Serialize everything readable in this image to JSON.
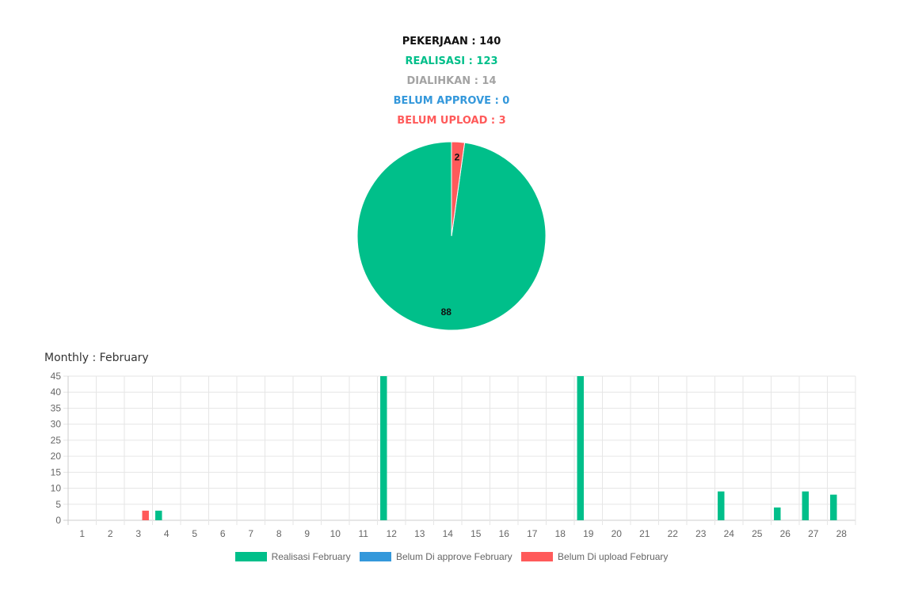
{
  "stats": {
    "pekerjaan": "PEKERJAAN : 140",
    "realisasi": "REALISASI : 123",
    "dialihkan": "DIALIHKAN : 14",
    "belum_approve": "BELUM APPROVE : 0",
    "belum_upload": "BELUM UPLOAD : 3"
  },
  "monthly_title": "Monthly : February",
  "colors": {
    "realisasi": "#00bf8a",
    "belum_approve": "#3498db",
    "belum_upload": "#ff5a5a",
    "dialihkan": "#a3a3a3"
  },
  "chart_data": [
    {
      "type": "pie",
      "slices": [
        {
          "label": "88",
          "value": 88,
          "color": "#00bf8a"
        },
        {
          "label": "",
          "value": 0,
          "color": "#3498db"
        },
        {
          "label": "2",
          "value": 2,
          "color": "#ff5a5a"
        }
      ]
    },
    {
      "type": "bar",
      "title": "Monthly : February",
      "categories": [
        "1",
        "2",
        "3",
        "4",
        "5",
        "6",
        "7",
        "8",
        "9",
        "10",
        "11",
        "12",
        "13",
        "14",
        "15",
        "16",
        "17",
        "18",
        "19",
        "20",
        "21",
        "22",
        "23",
        "24",
        "25",
        "26",
        "27",
        "28"
      ],
      "series": [
        {
          "name": "Realisasi February",
          "color": "#00bf8a",
          "values": [
            0,
            0,
            0,
            3,
            0,
            0,
            0,
            0,
            0,
            0,
            0,
            45,
            0,
            0,
            0,
            0,
            0,
            0,
            45,
            0,
            0,
            0,
            0,
            9,
            0,
            4,
            9,
            8
          ]
        },
        {
          "name": "Belum Di approve February",
          "color": "#3498db",
          "values": [
            0,
            0,
            0,
            0,
            0,
            0,
            0,
            0,
            0,
            0,
            0,
            0,
            0,
            0,
            0,
            0,
            0,
            0,
            0,
            0,
            0,
            0,
            0,
            0,
            0,
            0,
            0,
            0
          ]
        },
        {
          "name": "Belum Di upload February",
          "color": "#ff5a5a",
          "values": [
            0,
            0,
            3,
            0,
            0,
            0,
            0,
            0,
            0,
            0,
            0,
            0,
            0,
            0,
            0,
            0,
            0,
            0,
            0,
            0,
            0,
            0,
            0,
            0,
            0,
            0,
            0,
            0
          ]
        }
      ],
      "yticks": [
        "0",
        "5",
        "10",
        "15",
        "20",
        "25",
        "30",
        "35",
        "40",
        "45"
      ],
      "ylim": [
        0,
        45
      ],
      "grid": true,
      "legend": "bottom"
    }
  ]
}
